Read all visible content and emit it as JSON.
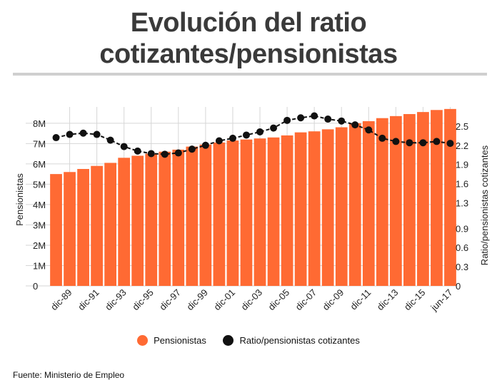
{
  "title_line1": "Evolución del ratio",
  "title_line2": "cotizantes/pensionistas",
  "source": "Fuente: Ministerio de Empleo",
  "legend": {
    "pensionistas": "Pensionistas",
    "ratio": "Ratio/pensionistas cotizantes"
  },
  "colors": {
    "bar": "#ff6a33",
    "line": "#111111",
    "grid": "#d6d6d6"
  },
  "chart_data": {
    "type": "bar",
    "categories": [
      "dic-88",
      "dic-89",
      "dic-90",
      "dic-91",
      "dic-92",
      "dic-93",
      "dic-94",
      "dic-95",
      "dic-96",
      "dic-97",
      "dic-98",
      "dic-99",
      "dic-00",
      "dic-01",
      "dic-02",
      "dic-03",
      "dic-04",
      "dic-05",
      "dic-06",
      "dic-07",
      "dic-08",
      "dic-09",
      "dic-10",
      "dic-11",
      "dic-12",
      "dic-13",
      "dic-14",
      "dic-15",
      "dic-16",
      "jun-17"
    ],
    "tick_labels": [
      "dic-89",
      "dic-91",
      "dic-93",
      "dic-95",
      "dic-97",
      "dic-99",
      "dic-01",
      "dic-03",
      "dic-05",
      "dic-07",
      "dic-09",
      "dic-11",
      "dic-13",
      "dic-15",
      "jun-17"
    ],
    "series": [
      {
        "name": "Pensionistas",
        "type": "bar",
        "axis": "left",
        "values": [
          5.5,
          5.6,
          5.75,
          5.9,
          6.05,
          6.3,
          6.4,
          6.5,
          6.6,
          6.7,
          6.85,
          6.95,
          7.05,
          7.15,
          7.2,
          7.25,
          7.3,
          7.4,
          7.55,
          7.6,
          7.7,
          7.8,
          8.0,
          8.1,
          8.25,
          8.35,
          8.45,
          8.55,
          8.65,
          8.7
        ]
      },
      {
        "name": "Ratio/pensionistas cotizantes",
        "type": "line",
        "axis": "right",
        "values": [
          2.32,
          2.37,
          2.39,
          2.37,
          2.28,
          2.18,
          2.11,
          2.07,
          2.06,
          2.08,
          2.14,
          2.2,
          2.27,
          2.31,
          2.36,
          2.41,
          2.47,
          2.59,
          2.63,
          2.66,
          2.61,
          2.58,
          2.52,
          2.44,
          2.31,
          2.26,
          2.24,
          2.24,
          2.26,
          2.23
        ]
      }
    ],
    "ylabel": "Pensionistas",
    "y2label": "Ratio/pensionistas cotizantes",
    "yticks": [
      "0",
      "1M",
      "2M",
      "3M",
      "4M",
      "5M",
      "6M",
      "7M",
      "8M"
    ],
    "y2ticks": [
      "0",
      "0.3",
      "0.6",
      "0.9",
      "1.3",
      "1.6",
      "1.9",
      "2.2",
      "2.5"
    ],
    "ylim": [
      0,
      8.8
    ],
    "y2lim": [
      0,
      2.8
    ],
    "grid": true,
    "legend_position": "bottom"
  }
}
